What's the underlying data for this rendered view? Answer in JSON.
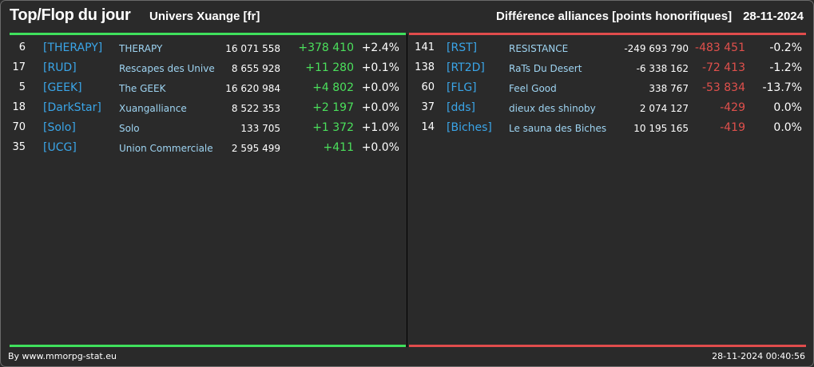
{
  "header": {
    "title": "Top/Flop du jour",
    "subtitle": "Univers Xuange [fr]",
    "right_title": "Différence alliances [points honorifiques]",
    "date": "28-11-2024"
  },
  "colors": {
    "top_accent": "#3fe05c",
    "flop_accent": "#e04c4c",
    "tag": "#3aa5e8",
    "name": "#9ed4f2"
  },
  "top": [
    {
      "rank": "6",
      "tag": "[THERAPY]",
      "name": "THERAPY",
      "points": "16 071 558",
      "diff": "+378 410",
      "pct": "+2.4%"
    },
    {
      "rank": "17",
      "tag": "[RUD]",
      "name": "Rescapes des Univers",
      "points": "8 655 928",
      "diff": "+11 280",
      "pct": "+0.1%"
    },
    {
      "rank": "5",
      "tag": "[GEEK]",
      "name": "The GEEK",
      "points": "16 620 984",
      "diff": "+4 802",
      "pct": "+0.0%"
    },
    {
      "rank": "18",
      "tag": "[DarkStar]",
      "name": "Xuangalliance",
      "points": "8 522 353",
      "diff": "+2 197",
      "pct": "+0.0%"
    },
    {
      "rank": "70",
      "tag": "[Solo]",
      "name": "Solo",
      "points": "133 705",
      "diff": "+1 372",
      "pct": "+1.0%"
    },
    {
      "rank": "35",
      "tag": "[UCG]",
      "name": "Union Commerciale Galactique",
      "points": "2 595 499",
      "diff": "+411",
      "pct": "+0.0%"
    }
  ],
  "flop": [
    {
      "rank": "141",
      "tag": "[RST]",
      "name": "RESISTANCE",
      "points": "-249 693 790",
      "diff": "-483 451",
      "pct": "-0.2%"
    },
    {
      "rank": "138",
      "tag": "[RT2D]",
      "name": "RaTs Du Desert",
      "points": "-6 338 162",
      "diff": "-72 413",
      "pct": "-1.2%"
    },
    {
      "rank": "60",
      "tag": "[FLG]",
      "name": "Feel Good",
      "points": "338 767",
      "diff": "-53 834",
      "pct": "-13.7%"
    },
    {
      "rank": "37",
      "tag": "[dds]",
      "name": "dieux des shinoby",
      "points": "2 074 127",
      "diff": "-429",
      "pct": "0.0%"
    },
    {
      "rank": "14",
      "tag": "[Biches]",
      "name": "Le sauna des Biches",
      "points": "10 195 165",
      "diff": "-419",
      "pct": "0.0%"
    }
  ],
  "footer": {
    "credit": "By www.mmorpg-stat.eu",
    "timestamp": "28-11-2024 00:40:56"
  }
}
